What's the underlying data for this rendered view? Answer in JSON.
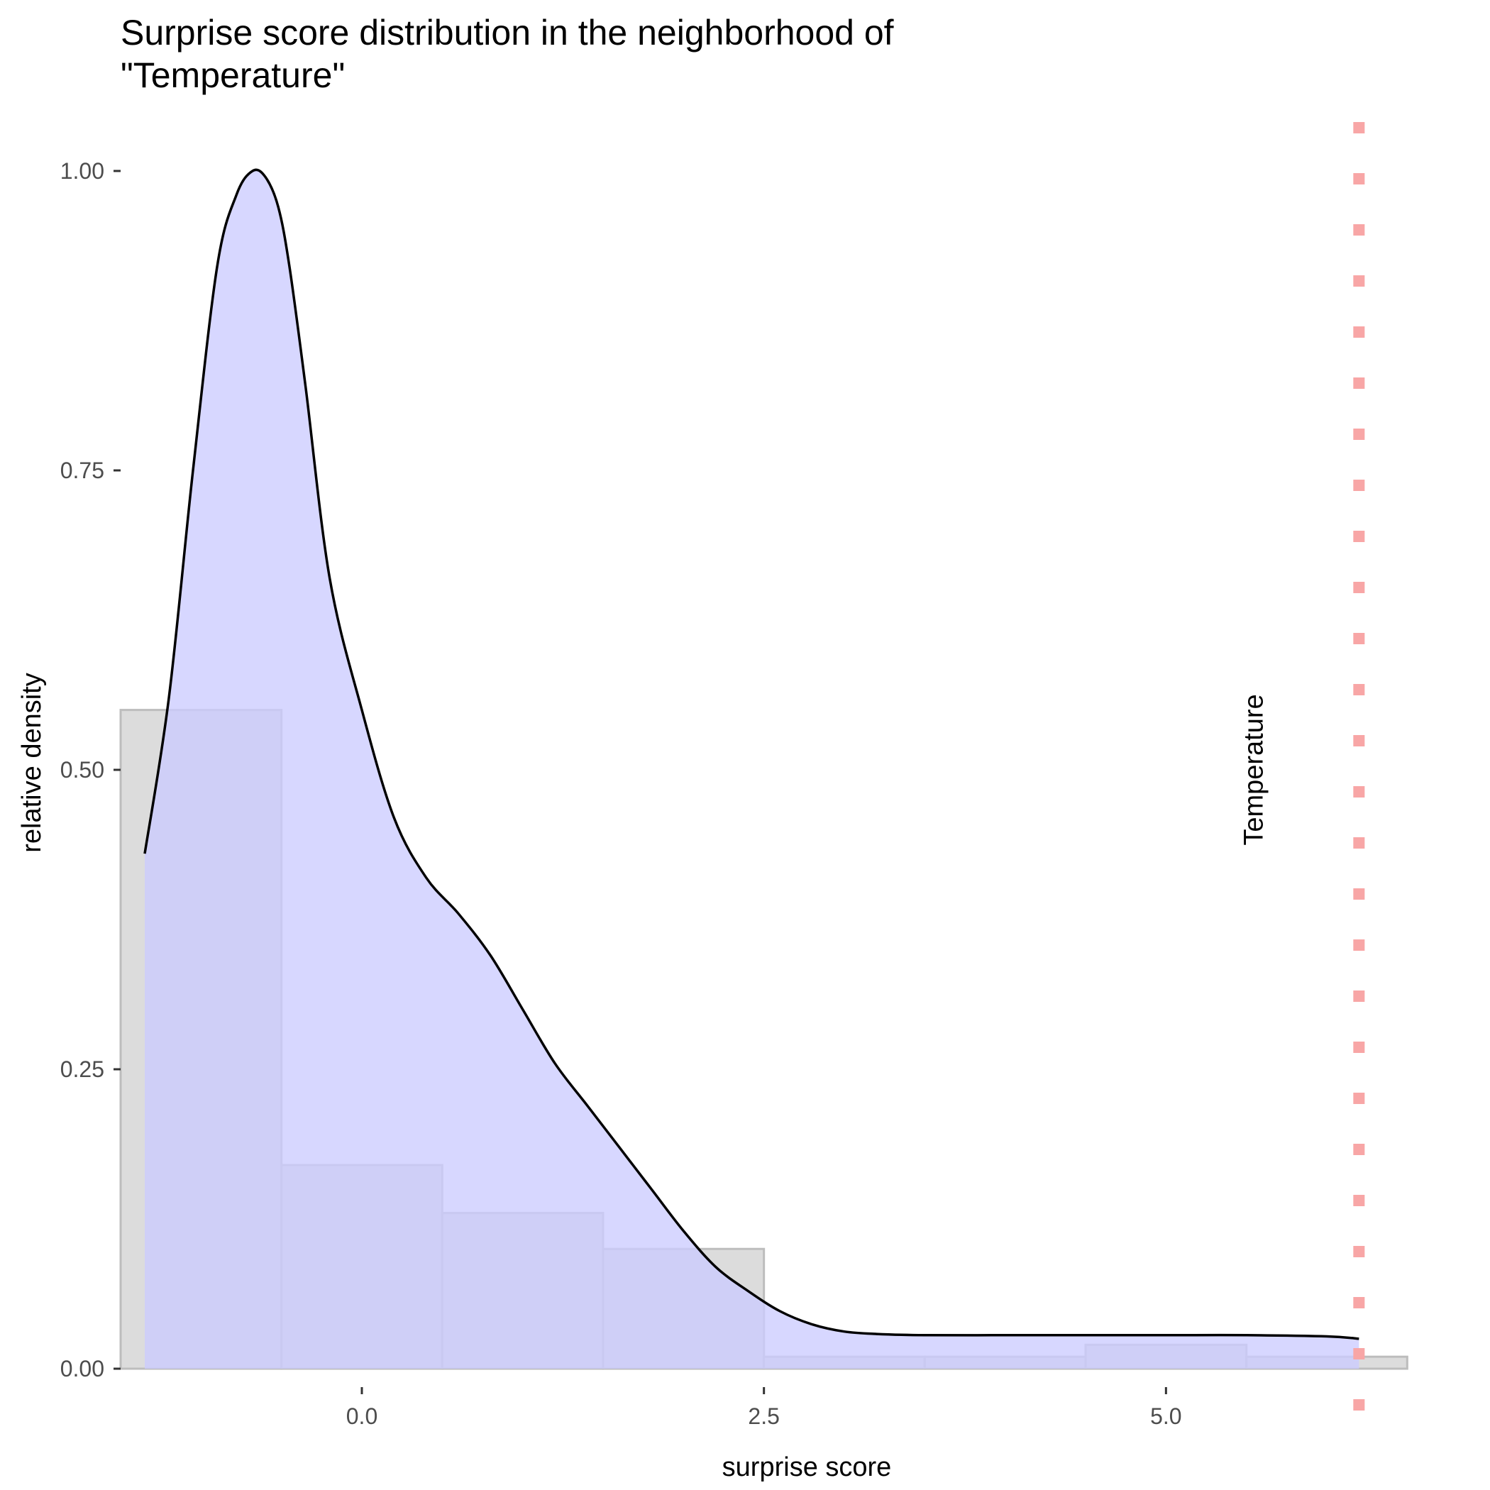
{
  "chart_data": {
    "type": "histogram-density",
    "title_lines": [
      "Surprise score distribution in the neighborhood of",
      "\"Temperature\""
    ],
    "xlabel": "surprise score",
    "ylabel": "relative density",
    "x_ticks": [
      {
        "value": 0,
        "label": "0.0"
      },
      {
        "value": 2.5,
        "label": "2.5"
      },
      {
        "value": 5,
        "label": "5.0"
      }
    ],
    "y_ticks": [
      {
        "value": 0,
        "label": "0.00"
      },
      {
        "value": 0.25,
        "label": "0.25"
      },
      {
        "value": 0.5,
        "label": "0.50"
      },
      {
        "value": 0.75,
        "label": "0.75"
      },
      {
        "value": 1,
        "label": "1.00"
      }
    ],
    "xlim": [
      -1.5,
      6.75
    ],
    "ylim": [
      -0.045,
      1.045
    ],
    "grid": false,
    "histogram": {
      "bins": [
        {
          "x0": -1.5,
          "x1": -0.5,
          "value": 0.55
        },
        {
          "x0": -0.5,
          "x1": 0.5,
          "value": 0.17
        },
        {
          "x0": 0.5,
          "x1": 1.5,
          "value": 0.13
        },
        {
          "x0": 1.5,
          "x1": 2.5,
          "value": 0.1
        },
        {
          "x0": 2.5,
          "x1": 3.5,
          "value": 0.01
        },
        {
          "x0": 3.5,
          "x1": 4.5,
          "value": 0.01
        },
        {
          "x0": 4.5,
          "x1": 5.5,
          "value": 0.02
        },
        {
          "x0": 5.5,
          "x1": 6.5,
          "value": 0.01
        }
      ],
      "fill": "#dcdcdc",
      "stroke": "#bdbdbd"
    },
    "density": {
      "x": [
        -1.35,
        -1.2,
        -1.05,
        -0.9,
        -0.78,
        -0.68,
        -0.6,
        -0.52,
        -0.45,
        -0.35,
        -0.2,
        0,
        0.2,
        0.4,
        0.6,
        0.8,
        1.0,
        1.2,
        1.4,
        1.6,
        1.8,
        2.0,
        2.2,
        2.4,
        2.6,
        2.8,
        3.0,
        3.2,
        3.5,
        4.0,
        4.5,
        5.0,
        5.5,
        6.0,
        6.2
      ],
      "y": [
        0.43,
        0.56,
        0.75,
        0.92,
        0.98,
        1.0,
        0.995,
        0.97,
        0.92,
        0.82,
        0.66,
        0.55,
        0.46,
        0.41,
        0.38,
        0.345,
        0.3,
        0.255,
        0.22,
        0.185,
        0.15,
        0.115,
        0.085,
        0.065,
        0.048,
        0.037,
        0.031,
        0.029,
        0.028,
        0.028,
        0.028,
        0.028,
        0.028,
        0.027,
        0.025
      ],
      "fill": "#ccccff",
      "stroke": "#000000"
    },
    "marker": {
      "x": 6.2,
      "label": "Temperature",
      "color": "#f8a6a6",
      "label_x": 5.6,
      "label_y": 0.5
    }
  }
}
